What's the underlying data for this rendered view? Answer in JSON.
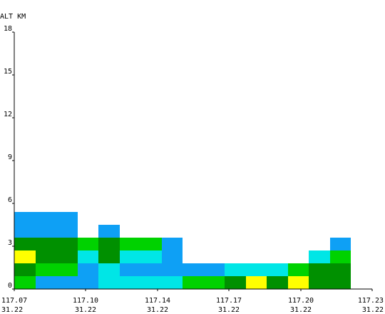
{
  "chart_data": {
    "type": "heatmap",
    "ylabel": "ALT KM",
    "ylim": [
      0,
      18
    ],
    "y_ticks": [
      "0",
      "3",
      "6",
      "9",
      "12",
      "15",
      "18"
    ],
    "x_ticks": [
      {
        "lon": "117.07",
        "lat": "31.22"
      },
      {
        "lon": "117.10",
        "lat": "31.22"
      },
      {
        "lon": "117.14",
        "lat": "31.22"
      },
      {
        "lon": "117.17",
        "lat": "31.22"
      },
      {
        "lon": "117.20",
        "lat": "31.22"
      },
      {
        "lon": "117.23",
        "lat": "31.22"
      }
    ],
    "palette": {
      "blue": "#0ea0f5",
      "cyan": "#00e6e6",
      "green": "#00d200",
      "darkgreen": "#009000",
      "yellow": "#ffff00"
    },
    "column_count": 17,
    "layer_height_km": 0.9,
    "columns": [
      [
        "green",
        "darkgreen",
        "yellow",
        "darkgreen",
        "blue",
        "blue"
      ],
      [
        "blue",
        "green",
        "darkgreen",
        "darkgreen",
        "blue",
        "blue"
      ],
      [
        "blue",
        "green",
        "darkgreen",
        "darkgreen",
        "blue",
        "blue"
      ],
      [
        "blue",
        "blue",
        "cyan",
        "green"
      ],
      [
        "cyan",
        "cyan",
        "darkgreen",
        "darkgreen",
        "blue"
      ],
      [
        "cyan",
        "blue",
        "cyan",
        "green"
      ],
      [
        "cyan",
        "blue",
        "cyan",
        "green"
      ],
      [
        "cyan",
        "blue",
        "blue",
        "blue"
      ],
      [
        "green",
        "blue"
      ],
      [
        "green",
        "blue"
      ],
      [
        "darkgreen",
        "cyan"
      ],
      [
        "yellow",
        "cyan"
      ],
      [
        "darkgreen",
        "cyan"
      ],
      [
        "yellow",
        "green"
      ],
      [
        "darkgreen",
        "darkgreen",
        "cyan"
      ],
      [
        "darkgreen",
        "darkgreen",
        "green",
        "blue"
      ],
      []
    ]
  }
}
